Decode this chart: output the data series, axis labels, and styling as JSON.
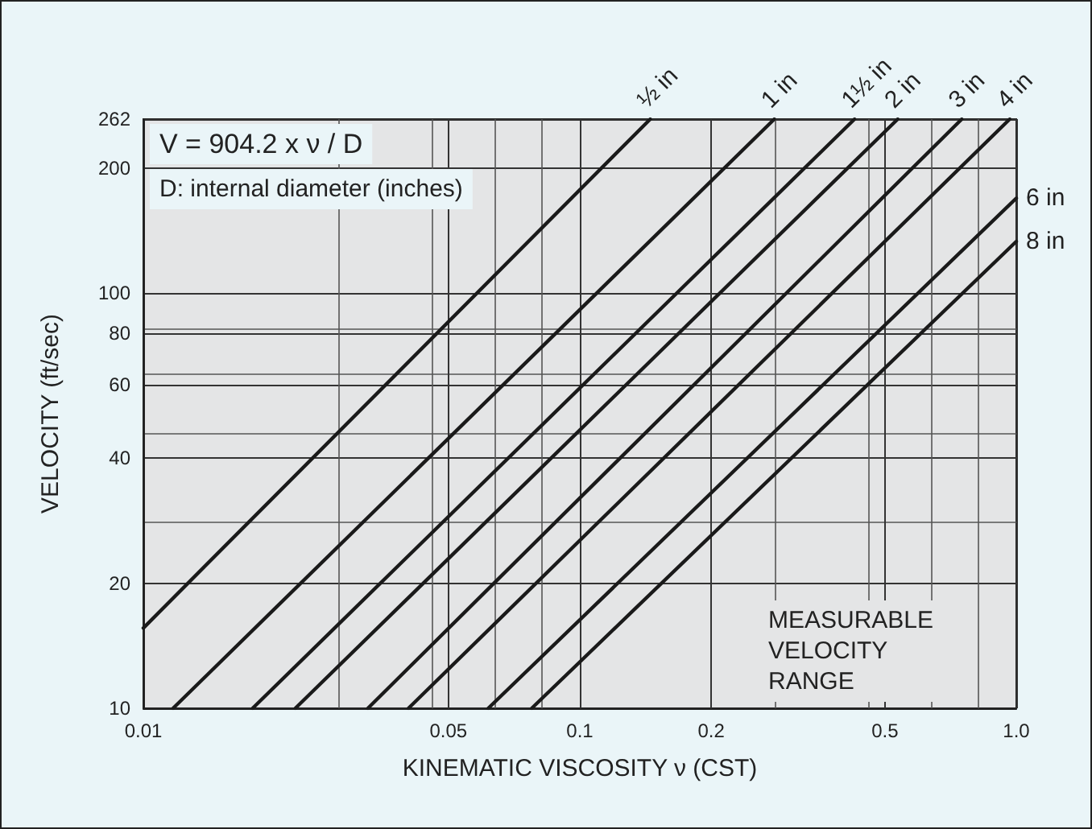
{
  "chart_data": {
    "type": "line",
    "xlabel": "KINEMATIC VISCOSITY ν (CST)",
    "ylabel": "VELOCITY (ft/sec)",
    "log": "xy",
    "grid": true,
    "legend": false,
    "marker": "none",
    "line_style": "solid",
    "xlim": [
      0.01,
      1
    ],
    "xticks": [
      0.01,
      0.05,
      0.1,
      0.2,
      0.5,
      {
        "value": 1,
        "label": "1.0"
      }
    ],
    "ylim": [
      10,
      262
    ],
    "yticks": [
      10,
      20,
      40,
      60,
      80,
      100,
      200,
      262
    ],
    "series": [
      {
        "name": "½ in",
        "color": "#1a1a1a",
        "x": [
          0.01,
          0.145
        ],
        "values": [
          15.6,
          262
        ]
      },
      {
        "name": "1 in",
        "color": "#1a1a1a",
        "x": [
          0.0117,
          0.279
        ],
        "values": [
          10,
          262
        ]
      },
      {
        "name": "1½ in",
        "color": "#1a1a1a",
        "x": [
          0.0178,
          0.426
        ],
        "values": [
          10,
          262
        ]
      },
      {
        "name": "2 in",
        "color": "#1a1a1a",
        "x": [
          0.0223,
          0.535
        ],
        "values": [
          10,
          262
        ]
      },
      {
        "name": "3 in",
        "color": "#1a1a1a",
        "x": [
          0.0327,
          0.75
        ],
        "values": [
          10,
          262
        ]
      },
      {
        "name": "4 in",
        "color": "#1a1a1a",
        "x": [
          0.0405,
          0.966
        ],
        "values": [
          10,
          262
        ]
      },
      {
        "name": "6 in",
        "color": "#1a1a1a",
        "x": [
          0.0617,
          1
        ],
        "values": [
          10,
          169
        ]
      },
      {
        "name": "8 in",
        "color": "#1a1a1a",
        "x": [
          0.0776,
          1
        ],
        "values": [
          10,
          133
        ]
      }
    ],
    "annotations": [
      "V = 904.2 x ν / D",
      "D: internal diameter (inches)",
      "MEASURABLE\nVELOCITY\nRANGE"
    ]
  }
}
